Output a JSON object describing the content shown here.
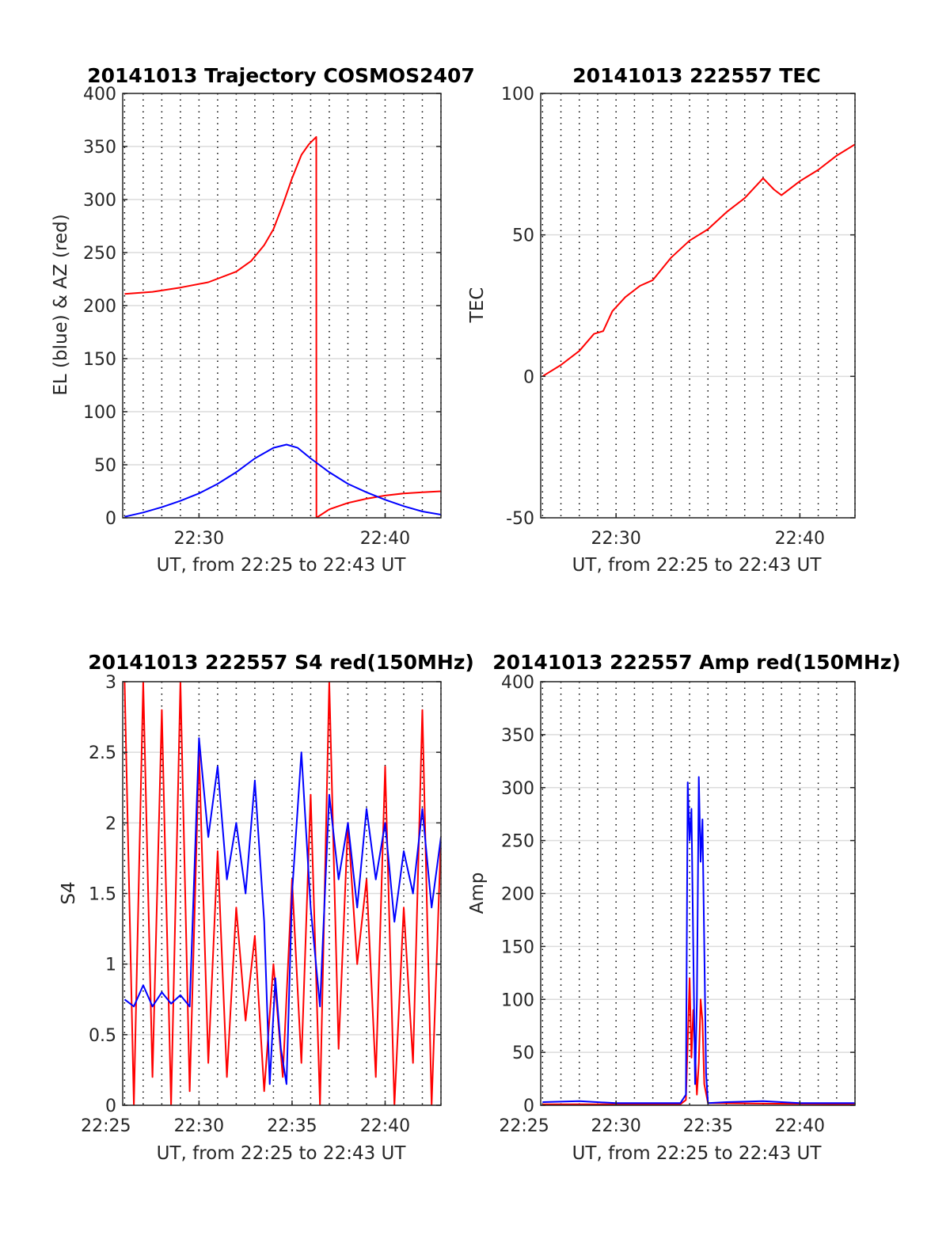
{
  "chart_data": [
    {
      "type": "line",
      "title": "20141013 Trajectory COSMOS2407",
      "xlabel": "UT, from 22:25 to 22:43 UT",
      "ylabel": "EL (blue) & AZ (red)",
      "xlim_minutes": [
        1345.9,
        1363.0
      ],
      "ylim": [
        0,
        400
      ],
      "yticks": [
        0,
        50,
        100,
        150,
        200,
        250,
        300,
        350,
        400
      ],
      "xticks": [
        {
          "value": 1350,
          "label": "22:30"
        },
        {
          "value": 1360,
          "label": "22:40"
        }
      ],
      "grid": {
        "x": "dotted",
        "y": "solid-light"
      },
      "series": [
        {
          "color": "#ff0000",
          "x": [
            1346.0,
            1347.5,
            1349.0,
            1350.5,
            1352.0,
            1352.8,
            1353.5,
            1354.0,
            1354.5,
            1355.0,
            1355.5,
            1355.9,
            1356.3,
            1356.31,
            1357.0,
            1358.0,
            1359.0,
            1360.0,
            1361.0,
            1362.0,
            1363.0
          ],
          "y": [
            211,
            213,
            217,
            222,
            232,
            242,
            257,
            272,
            295,
            320,
            342,
            352,
            359,
            0,
            8,
            14,
            18,
            21,
            23,
            24,
            25
          ]
        },
        {
          "color": "#0000ff",
          "x": [
            1346.0,
            1347.0,
            1348.0,
            1349.0,
            1350.0,
            1351.0,
            1352.0,
            1353.0,
            1354.0,
            1354.7,
            1355.3,
            1356.0,
            1357.0,
            1358.0,
            1359.0,
            1360.0,
            1361.0,
            1362.0,
            1363.0
          ],
          "y": [
            1,
            5,
            10,
            16,
            23,
            32,
            43,
            56,
            66,
            69,
            66,
            56,
            43,
            32,
            24,
            17,
            11,
            6,
            3
          ]
        }
      ]
    },
    {
      "type": "line",
      "title": "20141013 222557 TEC",
      "xlabel": "UT, from 22:25 to 22:43 UT",
      "ylabel": "TEC",
      "xlim_minutes": [
        1345.9,
        1363.0
      ],
      "ylim": [
        -50,
        100
      ],
      "yticks": [
        -50,
        0,
        50,
        100
      ],
      "xticks": [
        {
          "value": 1350,
          "label": "22:30"
        },
        {
          "value": 1360,
          "label": "22:40"
        }
      ],
      "grid": {
        "x": "dotted",
        "y": "solid-light"
      },
      "series": [
        {
          "color": "#ff0000",
          "x": [
            1346.0,
            1347.0,
            1348.0,
            1348.8,
            1349.3,
            1349.8,
            1350.5,
            1351.3,
            1352.0,
            1353.0,
            1354.0,
            1355.0,
            1356.0,
            1357.0,
            1358.0,
            1358.6,
            1359.0,
            1360.0,
            1361.0,
            1362.0,
            1363.0
          ],
          "y": [
            0,
            4,
            9,
            15,
            16,
            23,
            28,
            32,
            34,
            42,
            48,
            52,
            58,
            63,
            70,
            66,
            64,
            69,
            73,
            78,
            82
          ]
        }
      ]
    },
    {
      "type": "line",
      "title": "20141013 222557 S4 red(150MHz)",
      "xlabel": "UT, from 22:25 to 22:43 UT",
      "ylabel": "S4",
      "xlim_minutes": [
        1345.9,
        1363.0
      ],
      "ylim": [
        0,
        3
      ],
      "yticks": [
        0,
        0.5,
        1,
        1.5,
        2,
        2.5,
        3
      ],
      "xticks": [
        {
          "value": 1345,
          "label": "22:25"
        },
        {
          "value": 1350,
          "label": "22:30"
        },
        {
          "value": 1355,
          "label": "22:35"
        },
        {
          "value": 1360,
          "label": "22:40"
        }
      ],
      "grid": {
        "x": "dotted",
        "y": "solid-light"
      },
      "series": [
        {
          "color": "#ff0000",
          "x": [
            1346.0,
            1346.5,
            1347.0,
            1347.5,
            1348.0,
            1348.5,
            1349.0,
            1349.5,
            1350.0,
            1350.5,
            1351.0,
            1351.5,
            1352.0,
            1352.5,
            1353.0,
            1353.5,
            1354.0,
            1354.5,
            1355.0,
            1355.5,
            1356.0,
            1356.5,
            1357.0,
            1357.5,
            1358.0,
            1358.5,
            1359.0,
            1359.5,
            1360.0,
            1360.5,
            1361.0,
            1361.5,
            1362.0,
            1362.5,
            1363.0
          ],
          "y": [
            3.0,
            0.0,
            3.0,
            0.2,
            2.8,
            0.0,
            3.0,
            0.1,
            2.5,
            0.3,
            1.8,
            0.2,
            1.4,
            0.6,
            1.2,
            0.1,
            1.0,
            0.2,
            1.6,
            0.3,
            2.2,
            0.0,
            3.0,
            0.4,
            2.0,
            1.0,
            1.6,
            0.2,
            2.4,
            0.0,
            1.4,
            0.3,
            2.8,
            0.0,
            1.9
          ]
        },
        {
          "color": "#0000ff",
          "x": [
            1346.0,
            1346.5,
            1347.0,
            1347.5,
            1348.0,
            1348.5,
            1349.0,
            1349.5,
            1350.0,
            1350.5,
            1351.0,
            1351.5,
            1352.0,
            1352.5,
            1353.0,
            1353.5,
            1353.8,
            1354.1,
            1354.4,
            1354.7,
            1355.0,
            1355.5,
            1356.0,
            1356.5,
            1357.0,
            1357.5,
            1358.0,
            1358.5,
            1359.0,
            1359.5,
            1360.0,
            1360.5,
            1361.0,
            1361.5,
            1362.0,
            1362.5,
            1363.0
          ],
          "y": [
            0.75,
            0.7,
            0.85,
            0.7,
            0.8,
            0.72,
            0.78,
            0.7,
            2.6,
            1.9,
            2.4,
            1.6,
            2.0,
            1.5,
            2.3,
            1.3,
            0.15,
            0.9,
            0.4,
            0.15,
            1.5,
            2.5,
            1.4,
            0.7,
            2.2,
            1.6,
            2.0,
            1.4,
            2.1,
            1.6,
            2.0,
            1.3,
            1.8,
            1.5,
            2.1,
            1.4,
            1.9
          ]
        }
      ]
    },
    {
      "type": "line",
      "title": "20141013 222557 Amp red(150MHz)",
      "xlabel": "UT, from 22:25 to 22:43 UT",
      "ylabel": "Amp",
      "xlim_minutes": [
        1345.9,
        1363.0
      ],
      "ylim": [
        0,
        400
      ],
      "yticks": [
        0,
        50,
        100,
        150,
        200,
        250,
        300,
        350,
        400
      ],
      "xticks": [
        {
          "value": 1345,
          "label": "22:25"
        },
        {
          "value": 1350,
          "label": "22:30"
        },
        {
          "value": 1355,
          "label": "22:35"
        },
        {
          "value": 1360,
          "label": "22:40"
        }
      ],
      "grid": {
        "x": "dotted",
        "y": "solid-light"
      },
      "series": [
        {
          "color": "#ff0000",
          "x": [
            1346.0,
            1353.5,
            1353.8,
            1353.9,
            1354.0,
            1354.1,
            1354.2,
            1354.4,
            1354.5,
            1354.6,
            1354.7,
            1354.8,
            1355.0,
            1363.0
          ],
          "y": [
            1,
            1,
            5,
            60,
            120,
            45,
            90,
            10,
            40,
            100,
            80,
            20,
            2,
            1
          ]
        },
        {
          "color": "#0000ff",
          "x": [
            1346.0,
            1348.0,
            1350.0,
            1353.5,
            1353.8,
            1353.9,
            1354.0,
            1354.1,
            1354.2,
            1354.3,
            1354.4,
            1354.5,
            1354.6,
            1354.7,
            1354.8,
            1354.9,
            1355.0,
            1356.0,
            1358.0,
            1360.0,
            1363.0
          ],
          "y": [
            3,
            4,
            2,
            2,
            10,
            305,
            250,
            280,
            150,
            20,
            100,
            310,
            230,
            270,
            150,
            30,
            2,
            3,
            4,
            2,
            2
          ]
        }
      ]
    }
  ]
}
